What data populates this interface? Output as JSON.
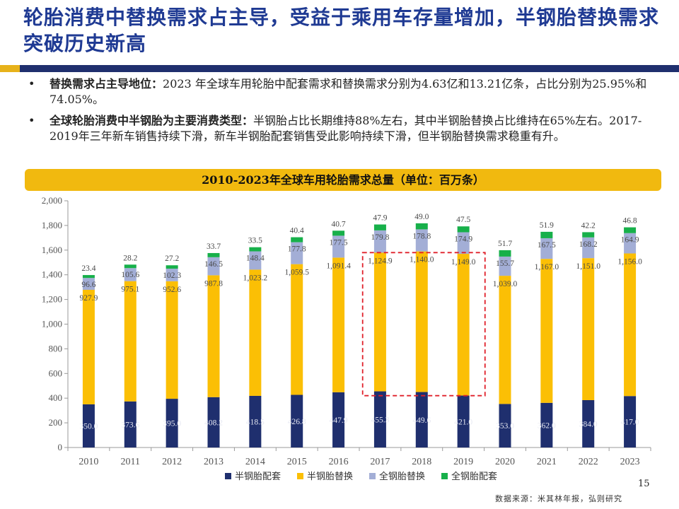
{
  "slide": {
    "title": "轮胎消费中替换需求占主导，受益于乘用车存量增加，半钢胎替换需求突破历史新高",
    "bullets": [
      {
        "bold": "替换需求占主导地位：",
        "text": "2023 年全球车用轮胎中配套需求和替换需求分别为4.63亿和13.21亿条，占比分别为25.95%和74.05%。"
      },
      {
        "bold": "全球轮胎消费中半钢胎为主要消费类型：",
        "text": "半钢胎占比长期维持88%左右，其中半钢胎替换占比维持在65%左右。2017-2019年三年新车销售持续下滑，新车半钢胎配套销售受此影响持续下滑，但半钢胎替换需求稳重有升。"
      }
    ],
    "bullet_symbol": "•",
    "page_number": "15",
    "source": "数据来源：米其林年报，弘则研究"
  },
  "chart_data": {
    "type": "bar",
    "stacked": true,
    "title": "2010-2023年全球车用轮胎需求总量（单位：百万条）",
    "categories": [
      "2010",
      "2011",
      "2012",
      "2013",
      "2014",
      "2015",
      "2016",
      "2017",
      "2018",
      "2019",
      "2020",
      "2021",
      "2022",
      "2023"
    ],
    "series": [
      {
        "name": "半钢胎配套",
        "color": "#1f2f6e",
        "values": [
          350.0,
          373.6,
          395.0,
          408.2,
          418.5,
          426.8,
          447.9,
          455.3,
          449.6,
          421.0,
          353.0,
          362.0,
          384.0,
          417.0
        ]
      },
      {
        "name": "半钢胎替换",
        "color": "#fbbf05",
        "values": [
          927.9,
          975.1,
          952.6,
          987.8,
          1023.2,
          1059.5,
          1091.4,
          1124.9,
          1140.0,
          1149.0,
          1039.0,
          1167.0,
          1151.0,
          1156.0
        ]
      },
      {
        "name": "全钢胎替换",
        "color": "#a3aed6",
        "values": [
          96.6,
          105.6,
          102.3,
          146.5,
          148.4,
          177.8,
          177.5,
          179.8,
          178.8,
          174.9,
          155.7,
          167.5,
          168.2,
          164.9
        ]
      },
      {
        "name": "全钢胎配套",
        "color": "#17b04a",
        "values": [
          23.4,
          28.2,
          27.2,
          33.7,
          33.5,
          40.4,
          40.7,
          47.9,
          49.0,
          47.5,
          51.7,
          51.9,
          42.2,
          46.8
        ]
      }
    ],
    "data_labels": {
      "半钢胎配套": [
        "350.0",
        "373.6",
        "395.0",
        "408.2",
        "418.5",
        "426.8",
        "447.9",
        "455.3",
        "449.6",
        "421.0",
        "353.0",
        "362.0",
        "384.0",
        "417.0"
      ],
      "半钢胎替换": [
        "927.9",
        "975.1",
        "952.6",
        "987.8",
        "1,023.2",
        "1,059.5",
        "1,091.4",
        "1,124.9",
        "1,140.0",
        "1,149.0",
        "1,039.0",
        "1,167.0",
        "1,151.0",
        "1,156.0"
      ],
      "全钢胎替换": [
        "96.6",
        "105.6",
        "102.3",
        "146.5",
        "148.4",
        "177.8",
        "177.5",
        "179.8",
        "178.8",
        "174.9",
        "155.7",
        "167.5",
        "168.2",
        "164.9"
      ],
      "全钢胎配套": [
        "23.4",
        "28.2",
        "27.2",
        "33.7",
        "33.5",
        "40.4",
        "40.7",
        "47.9",
        "49.0",
        "47.5",
        "51.7",
        "51.9",
        "42.2",
        "46.8"
      ]
    },
    "yticks": [
      "0",
      "200",
      "400",
      "600",
      "800",
      "1,000",
      "1,200",
      "1,400",
      "1,600",
      "1,800",
      "2,000"
    ],
    "ylim": [
      0,
      2000
    ],
    "xlabel": "",
    "ylabel": "",
    "grid": false,
    "legend_position": "bottom",
    "highlight": {
      "from": "2017",
      "to": "2019",
      "color": "#e0202a",
      "ymin": 420,
      "ymax": 1580
    }
  }
}
